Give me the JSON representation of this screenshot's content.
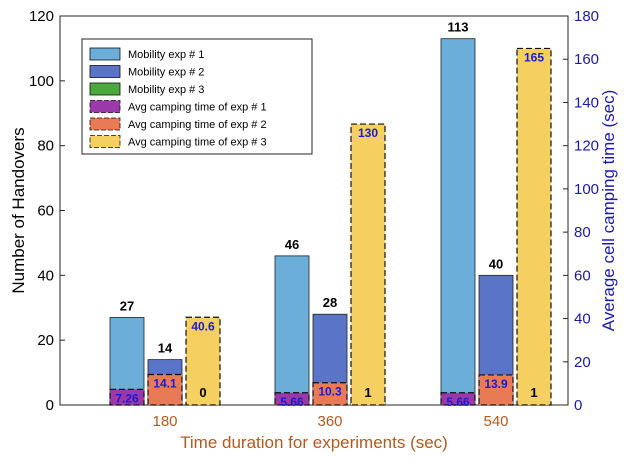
{
  "chart_data": {
    "type": "bar",
    "xlabel": "Time duration for experiments (sec)",
    "ylabel_left": "Number of Handovers",
    "ylabel_right": "Average cell camping time (sec)",
    "categories": [
      "180",
      "360",
      "540"
    ],
    "ylim_left": [
      0,
      120
    ],
    "yticks_left": [
      0,
      20,
      40,
      60,
      80,
      100,
      120
    ],
    "ylim_right": [
      0,
      180
    ],
    "yticks_right": [
      0,
      20,
      40,
      60,
      80,
      100,
      120,
      140,
      160,
      180
    ],
    "grid": false,
    "legend_position": "top-left",
    "handover_series": [
      {
        "name": "Mobility exp # 1",
        "values": [
          27,
          46,
          113
        ],
        "labels": [
          "27",
          "46",
          "113"
        ]
      },
      {
        "name": "Mobility exp # 2",
        "values": [
          14,
          28,
          40
        ],
        "labels": [
          "14",
          "28",
          "40"
        ]
      },
      {
        "name": "Mobility exp # 3",
        "values": [
          0,
          1,
          1
        ],
        "labels": [
          "0",
          "1",
          "1"
        ]
      }
    ],
    "camping_series": [
      {
        "name": "Avg camping time of exp # 1",
        "values": [
          7.26,
          5.66,
          5.66
        ],
        "labels": [
          "7.26",
          "5.66",
          "5.66"
        ]
      },
      {
        "name": "Avg camping time of exp # 2",
        "values": [
          14.1,
          10.3,
          13.9
        ],
        "labels": [
          "14.1",
          "10.3",
          "13.9"
        ]
      },
      {
        "name": "Avg camping time of exp # 3",
        "values": [
          40.6,
          130,
          165
        ],
        "labels": [
          "40.6",
          "130",
          "165"
        ]
      }
    ],
    "colors": {
      "mobility_1": "#6aaed9",
      "mobility_2": "#5a74c8",
      "mobility_3": "#4aa83c",
      "camping_1": "#9a3aa8",
      "camping_2": "#e87a55",
      "camping_3": "#f5d060",
      "left_axis": "#000000",
      "right_axis": "#1a1aa6",
      "x_axis": "#b05a20"
    }
  }
}
